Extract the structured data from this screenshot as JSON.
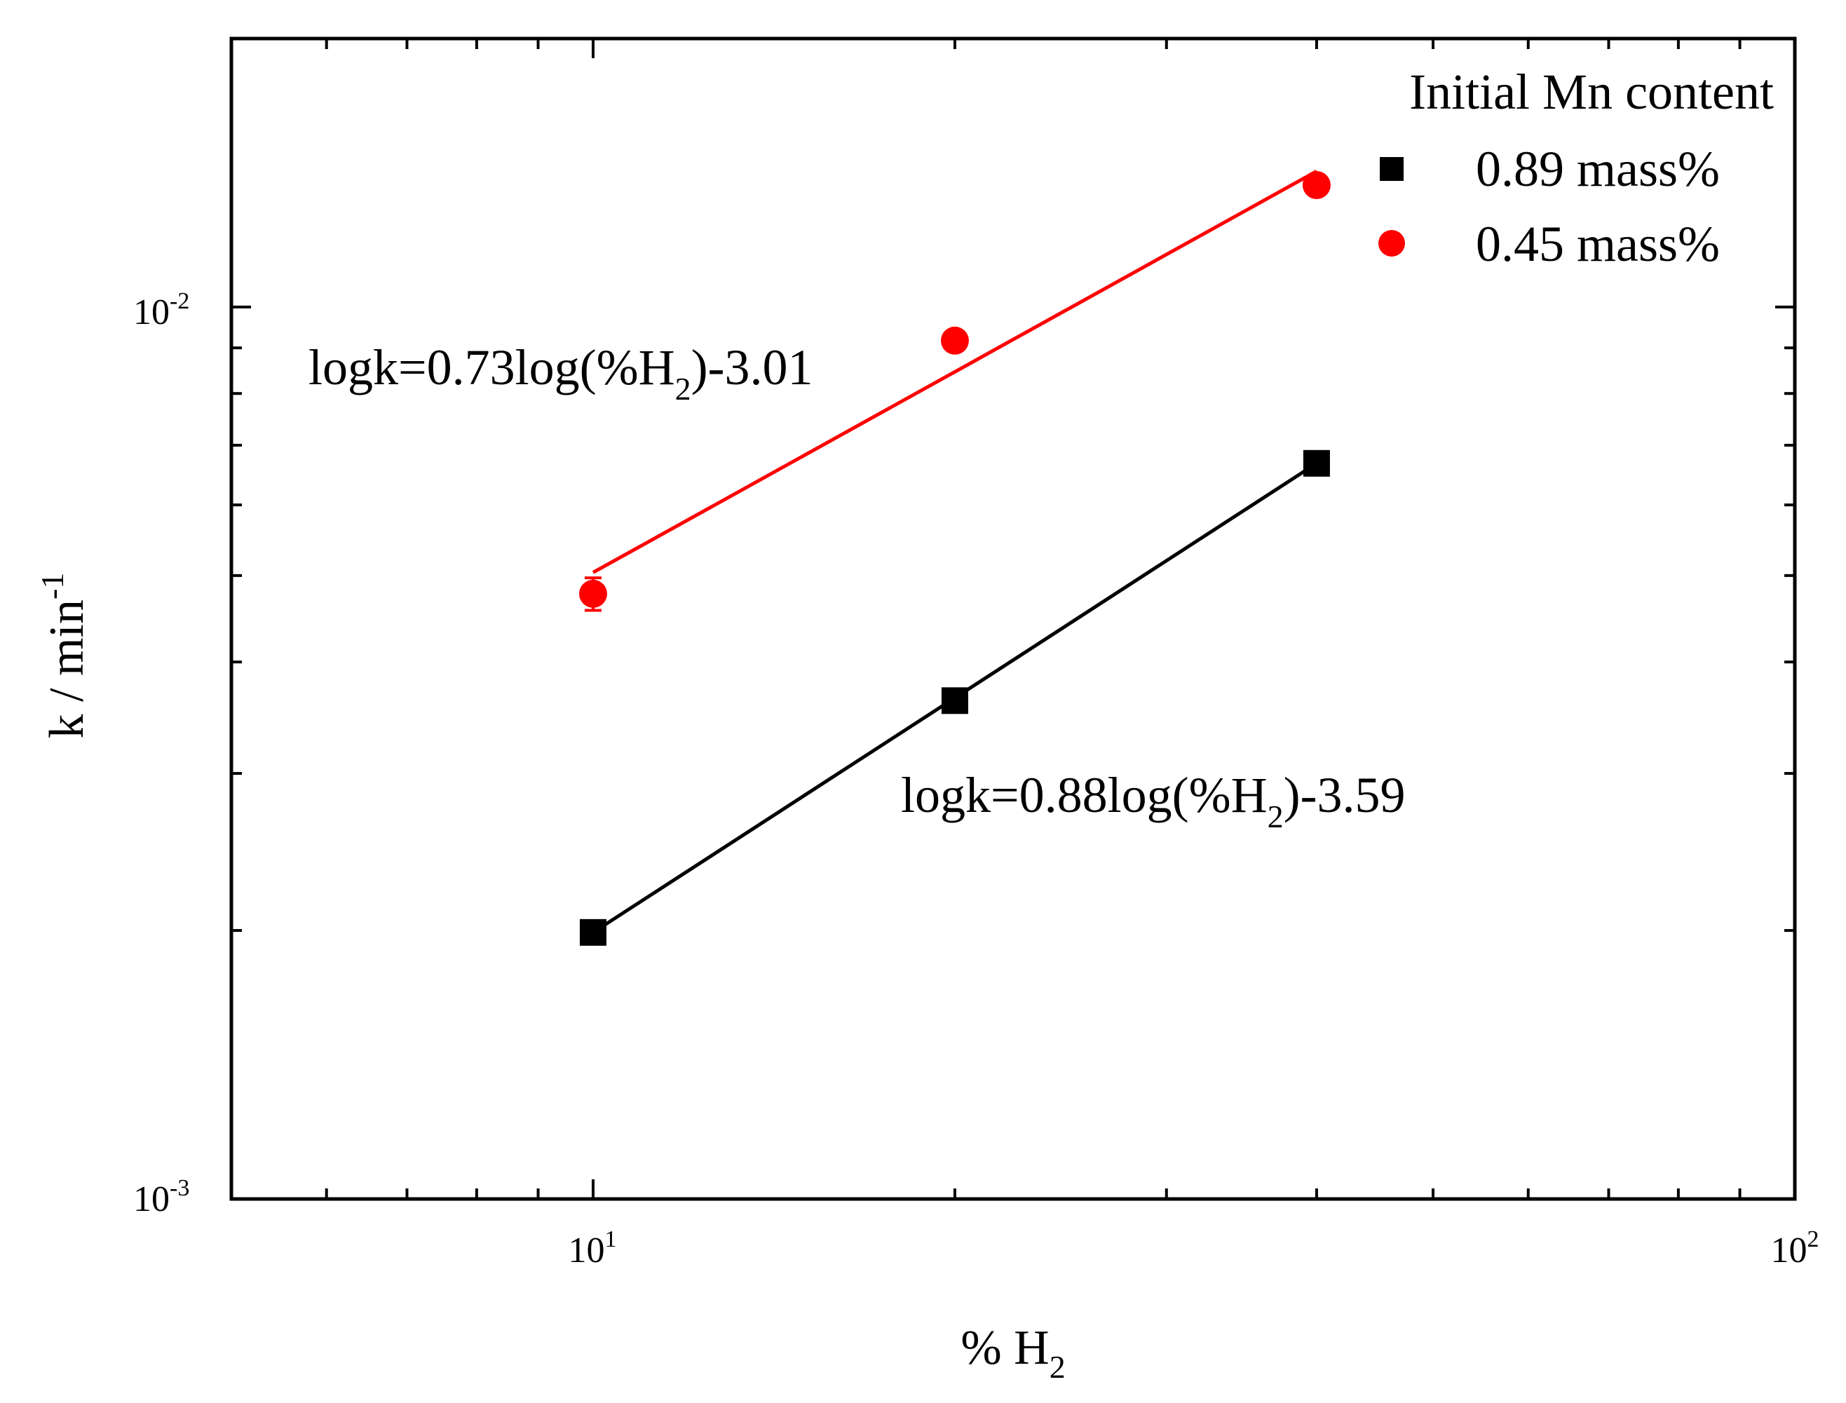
{
  "chart_data": {
    "type": "scatter",
    "scale": {
      "x": "log",
      "y": "log"
    },
    "xlim": [
      5,
      100
    ],
    "ylim": [
      0.001,
      0.02
    ],
    "x_ticks": [
      {
        "base": "10",
        "exp": "1"
      },
      {
        "base": "10",
        "exp": "2"
      }
    ],
    "y_ticks": [
      {
        "base": "10",
        "exp": "-3"
      },
      {
        "base": "10",
        "exp": "-2"
      }
    ],
    "xlabel": {
      "main": "% H",
      "sub": "2"
    },
    "ylabel": {
      "main": "k / min",
      "sup": "-1"
    },
    "legend": {
      "title": "Initial Mn content",
      "position": "top-right",
      "entries": [
        {
          "label": "0.89 mass%",
          "marker": "square",
          "color": "#000000"
        },
        {
          "label": "0.45 mass%",
          "marker": "circle",
          "color": "#ff0000"
        }
      ]
    },
    "series": [
      {
        "name": "0.89 mass%",
        "marker": "square",
        "color": "#000000",
        "x": [
          10,
          20,
          40
        ],
        "y": [
          0.00199,
          0.00362,
          0.00668
        ],
        "fit": {
          "slope": 0.88,
          "intercept": -3.59,
          "x_range": [
            10,
            40
          ],
          "y_range": [
            0.00199,
            0.00668
          ]
        },
        "equation": {
          "pre": "logk=0.88log(%H",
          "sub": "2",
          "post": ")-3.59"
        }
      },
      {
        "name": "0.45 mass%",
        "marker": "circle",
        "color": "#ff0000",
        "x": [
          10,
          20,
          40
        ],
        "y": [
          0.00477,
          0.00917,
          0.0137
        ],
        "yerr": [
          0.0002,
          0.0001,
          0.0001
        ],
        "fit": {
          "slope": 0.73,
          "intercept": -3.01,
          "x_range": [
            10,
            40
          ],
          "y_range": [
            0.00504,
            0.0142
          ]
        },
        "equation": {
          "pre": "logk=0.73log(%H",
          "sub": "2",
          "post": ")-3.01"
        }
      }
    ]
  }
}
